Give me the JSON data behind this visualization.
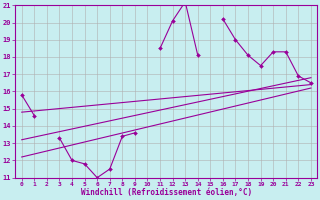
{
  "x": [
    0,
    1,
    2,
    3,
    4,
    5,
    6,
    7,
    8,
    9,
    10,
    11,
    12,
    13,
    14,
    15,
    16,
    17,
    18,
    19,
    20,
    21,
    22,
    23
  ],
  "y_main": [
    15.8,
    14.6,
    null,
    13.3,
    12.0,
    11.8,
    11.0,
    11.5,
    13.4,
    13.6,
    null,
    18.5,
    20.1,
    21.2,
    18.1,
    null,
    20.2,
    19.0,
    18.1,
    17.5,
    18.3,
    18.3,
    16.9,
    16.5
  ],
  "reg_line1": [
    12.2,
    16.2
  ],
  "reg_line2": [
    13.2,
    16.8
  ],
  "reg_line3": [
    14.8,
    16.4
  ],
  "xlim": [
    -0.5,
    23.5
  ],
  "ylim": [
    11,
    21
  ],
  "yticks": [
    11,
    12,
    13,
    14,
    15,
    16,
    17,
    18,
    19,
    20,
    21
  ],
  "xticks": [
    0,
    1,
    2,
    3,
    4,
    5,
    6,
    7,
    8,
    9,
    10,
    11,
    12,
    13,
    14,
    15,
    16,
    17,
    18,
    19,
    20,
    21,
    22,
    23
  ],
  "xlabel": "Windchill (Refroidissement éolien,°C)",
  "line_color": "#990099",
  "bg_color": "#c8eef0",
  "grid_color": "#b0b0b0",
  "title": ""
}
